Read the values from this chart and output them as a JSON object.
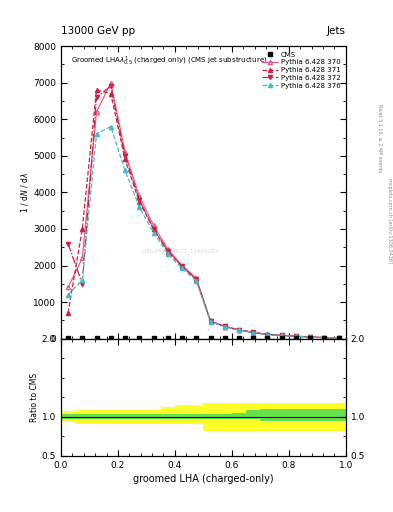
{
  "title_top": "13000 GeV pp",
  "title_right": "Jets",
  "plot_title": "Groomed LHA$\\lambda^{1}_{0.5}$ (charged only) (CMS jet substructure)",
  "xlabel": "groomed LHA (charged-only)",
  "ylabel_main": "1 / $\\mathrm{d}N$ / $\\mathrm{d}\\lambda$",
  "ylabel_ratio": "Ratio to CMS",
  "right_label_top": "Rivet 3.1.10, ≥ 2.4M events",
  "right_label_bot": "mcplots.cern.ch [arXiv:1306.3436]",
  "watermark": "CMS-PAS-SMP-21_11920187",
  "x_bins": [
    0.0,
    0.05,
    0.1,
    0.15,
    0.2,
    0.25,
    0.3,
    0.35,
    0.4,
    0.45,
    0.5,
    0.55,
    0.6,
    0.65,
    0.7,
    0.75,
    0.8,
    0.85,
    0.9,
    0.95,
    1.0
  ],
  "py370_y": [
    1400,
    2200,
    6200,
    7000,
    5100,
    3900,
    3100,
    2450,
    2000,
    1650,
    480,
    340,
    240,
    175,
    115,
    95,
    65,
    48,
    28,
    9
  ],
  "py371_y": [
    700,
    3000,
    6800,
    6700,
    4900,
    3750,
    3000,
    2380,
    1980,
    1620,
    470,
    330,
    235,
    170,
    112,
    92,
    63,
    46,
    27,
    8
  ],
  "py372_y": [
    2600,
    1500,
    6600,
    6900,
    5000,
    3800,
    3000,
    2400,
    1980,
    1630,
    475,
    335,
    237,
    172,
    113,
    93,
    64,
    47,
    28,
    9
  ],
  "py376_y": [
    1200,
    1600,
    5600,
    5800,
    4600,
    3600,
    2900,
    2320,
    1920,
    1580,
    460,
    325,
    230,
    168,
    110,
    90,
    62,
    45,
    26,
    8
  ],
  "ratio_x_edges": [
    0.0,
    0.05,
    0.1,
    0.15,
    0.2,
    0.25,
    0.3,
    0.35,
    0.4,
    0.45,
    0.5,
    0.55,
    0.6,
    0.65,
    0.7,
    0.75,
    0.8,
    0.85,
    0.9,
    0.95,
    1.0
  ],
  "green_band_y_lo": [
    0.97,
    0.97,
    0.97,
    0.97,
    0.97,
    0.97,
    0.97,
    0.97,
    0.97,
    0.97,
    0.97,
    0.97,
    0.97,
    0.97,
    0.95,
    0.95,
    0.95,
    0.95,
    0.95,
    0.95
  ],
  "green_band_y_hi": [
    1.03,
    1.03,
    1.03,
    1.03,
    1.03,
    1.03,
    1.03,
    1.03,
    1.03,
    1.03,
    1.03,
    1.03,
    1.05,
    1.08,
    1.1,
    1.1,
    1.1,
    1.1,
    1.1,
    1.1
  ],
  "yellow_band_y_lo": [
    0.93,
    0.9,
    0.9,
    0.9,
    0.9,
    0.9,
    0.9,
    0.9,
    0.9,
    0.9,
    0.82,
    0.82,
    0.82,
    0.82,
    0.82,
    0.82,
    0.82,
    0.82,
    0.82,
    0.82
  ],
  "yellow_band_y_hi": [
    1.07,
    1.09,
    1.09,
    1.09,
    1.09,
    1.09,
    1.09,
    1.12,
    1.15,
    1.15,
    1.18,
    1.18,
    1.18,
    1.18,
    1.18,
    1.18,
    1.18,
    1.18,
    1.18,
    1.18
  ],
  "color_370": "#e06080",
  "color_371": "#cc2244",
  "color_372": "#cc2244",
  "color_376": "#44bbcc",
  "ylim_main": [
    0,
    8000
  ],
  "ylim_ratio": [
    0.5,
    2.0
  ],
  "xlim": [
    0.0,
    1.0
  ],
  "yticks_main": [
    0,
    1000,
    2000,
    3000,
    4000,
    5000,
    6000,
    7000,
    8000
  ],
  "yticks_ratio": [
    0.5,
    1.0,
    2.0
  ],
  "bg_color": "#ffffff"
}
